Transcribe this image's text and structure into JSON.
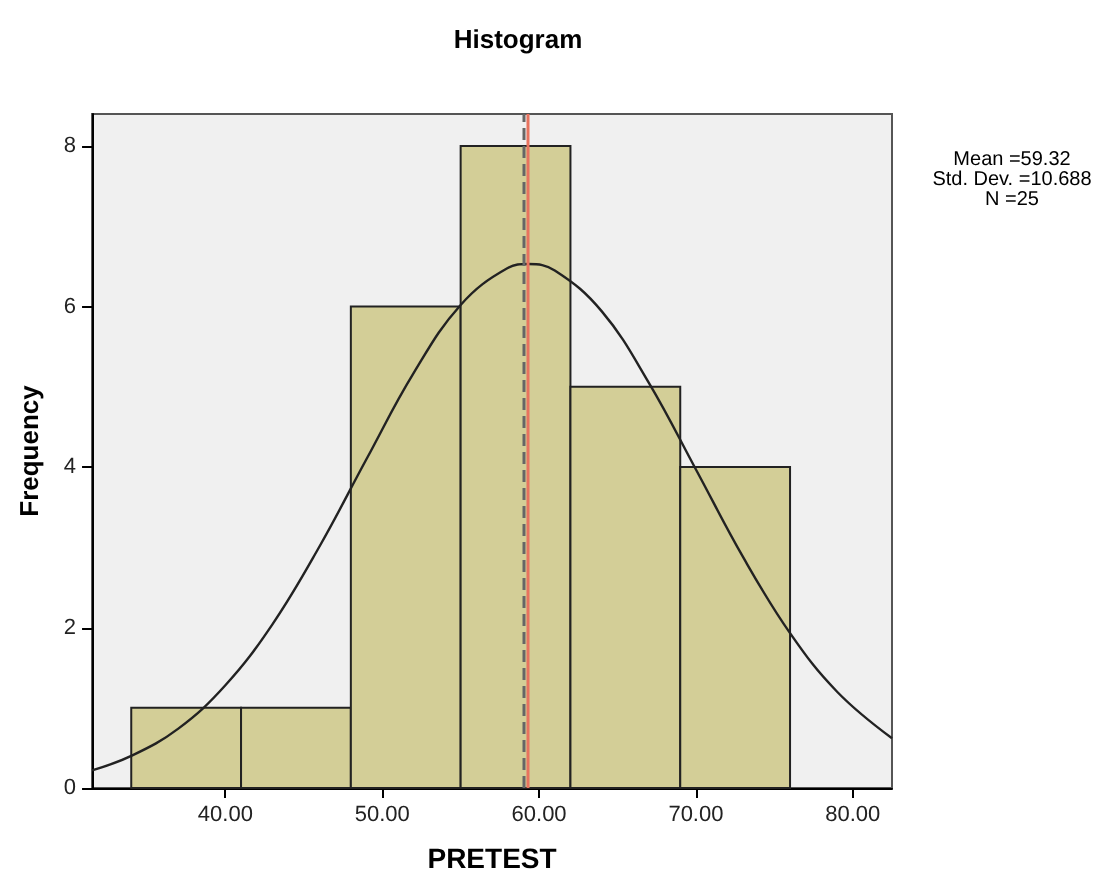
{
  "chart_data": {
    "type": "histogram",
    "title": "Histogram",
    "xlabel": "PRETEST",
    "ylabel": "Frequency",
    "bins": [
      34,
      41,
      48,
      55,
      62,
      69,
      76
    ],
    "values": [
      1,
      1,
      6,
      8,
      5,
      4
    ],
    "color": "#d3ce97",
    "series": [
      {
        "type": "line",
        "color": "#222222",
        "x": [
          31.5,
          34,
          37,
          40,
          43,
          46,
          49,
          52,
          55,
          58,
          59.32,
          61,
          64,
          67,
          70,
          73,
          76,
          79,
          82.5
        ],
        "values": [
          0.22,
          0.4,
          0.74,
          1.28,
          2.04,
          3.01,
          4.1,
          5.17,
          6.02,
          6.48,
          6.53,
          6.45,
          5.94,
          5.05,
          3.97,
          2.88,
          1.93,
          1.2,
          0.62
        ]
      }
    ],
    "xlim": [
      31.5,
      82.5
    ],
    "ylim": [
      0,
      8.4
    ],
    "xticks": [
      {
        "value": 40,
        "label": "40.00"
      },
      {
        "value": 50,
        "label": "50.00"
      },
      {
        "value": 60,
        "label": "60.00"
      },
      {
        "value": 70,
        "label": "70.00"
      },
      {
        "value": 80,
        "label": "80.00"
      }
    ],
    "yticks": [
      0,
      2,
      4,
      6,
      8
    ],
    "ref_lines": [
      {
        "axis": "x",
        "value": 59,
        "color": "#666666",
        "line_style": "dashed"
      },
      {
        "axis": "x",
        "value": 59.32,
        "color": "#e8735f",
        "line_style": "solid"
      }
    ],
    "annotations": [
      "Mean =59.32",
      "Std. Dev. =10.688",
      "N =25"
    ],
    "grid": false
  }
}
